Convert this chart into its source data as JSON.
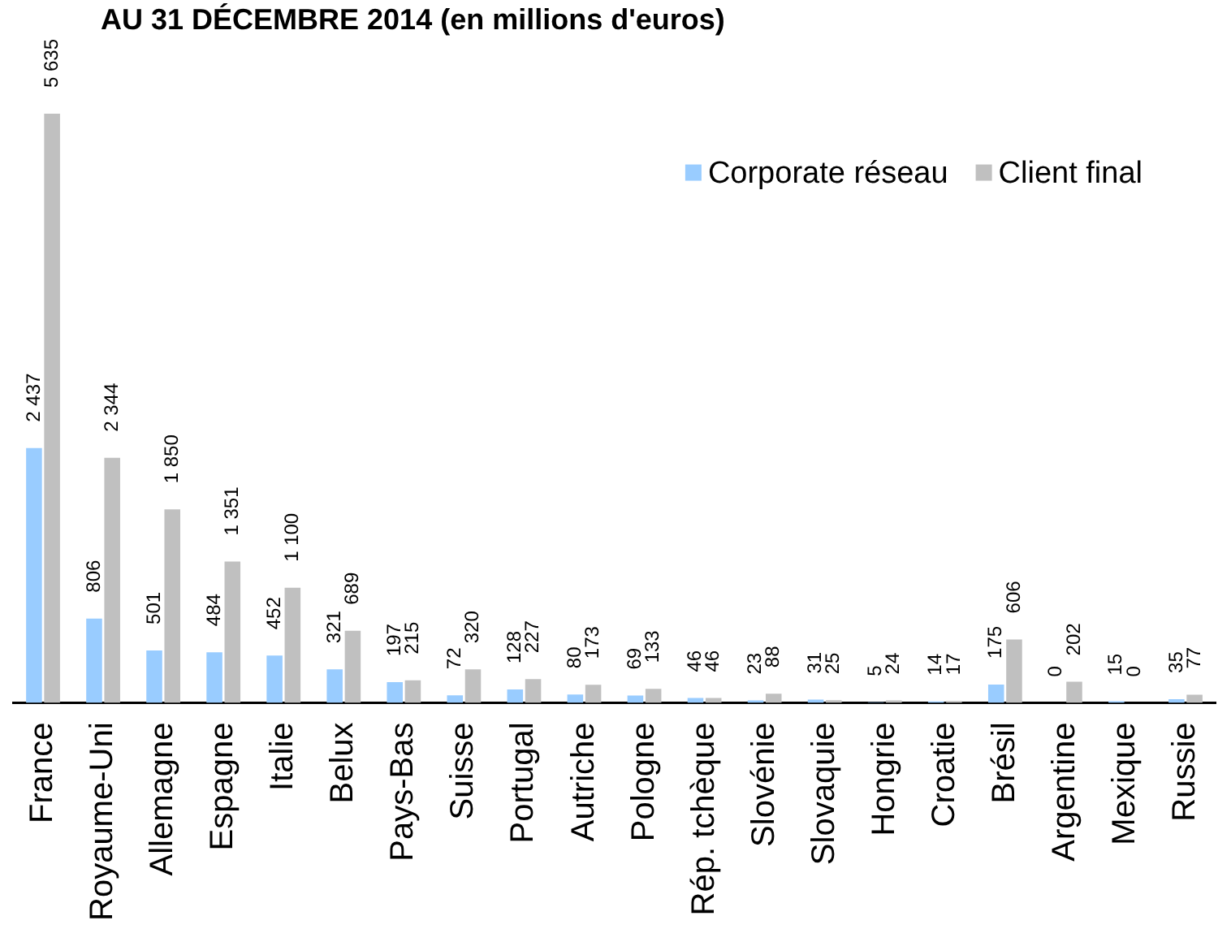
{
  "chart_data": {
    "type": "bar",
    "title": "AU 31 DÉCEMBRE 2014 (en millions d'euros)",
    "categories": [
      "France",
      "Royaume-Uni",
      "Allemagne",
      "Espagne",
      "Italie",
      "Belux",
      "Pays-Bas",
      "Suisse",
      "Portugal",
      "Autriche",
      "Pologne",
      "Rép. tchèque",
      "Slovénie",
      "Slovaquie",
      "Hongrie",
      "Croatie",
      "Brésil",
      "Argentine",
      "Mexique",
      "Russie"
    ],
    "series": [
      {
        "name": "Corporate réseau",
        "color": "#99ccff",
        "values": [
          2437,
          806,
          501,
          484,
          452,
          321,
          197,
          72,
          128,
          80,
          69,
          46,
          23,
          31,
          5,
          14,
          175,
          0,
          15,
          35
        ],
        "value_labels": [
          "2 437",
          "806",
          "501",
          "484",
          "452",
          "321",
          "197",
          "72",
          "128",
          "80",
          "69",
          "46",
          "23",
          "31",
          "5",
          "14",
          "175",
          "0",
          "15",
          "35"
        ]
      },
      {
        "name": "Client final",
        "color": "#c0c0c0",
        "values": [
          5635,
          2344,
          1850,
          1351,
          1100,
          689,
          215,
          320,
          227,
          173,
          133,
          46,
          88,
          25,
          24,
          17,
          606,
          202,
          0,
          77
        ],
        "value_labels": [
          "5 635",
          "2 344",
          "1 850",
          "1 351",
          "1 100",
          "689",
          "215",
          "320",
          "227",
          "173",
          "133",
          "46",
          "88",
          "25",
          "24",
          "17",
          "606",
          "202",
          "0",
          "77"
        ]
      }
    ],
    "legend": "top right"
  }
}
